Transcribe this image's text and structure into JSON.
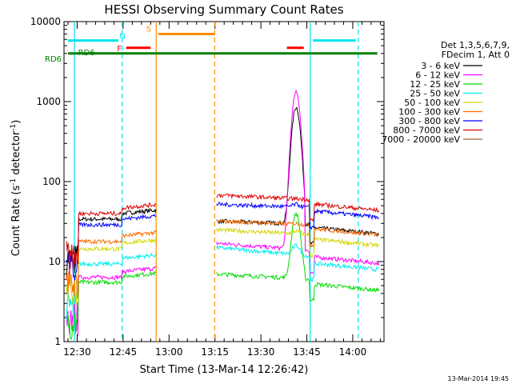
{
  "chart_data": {
    "type": "line",
    "title": "HESSI Observing Summary Count Rates",
    "xlabel": "Start Time (13-Mar-14 12:26:42)",
    "ylabel_main": "Count Rate (s",
    "ylabel_sup1": "-1",
    "ylabel_mid": " detector",
    "ylabel_sup2": "-1",
    "ylabel_end": ")",
    "y_log": true,
    "ylim": [
      1,
      10000
    ],
    "xlim_minutes": [
      -4.3,
      100.2
    ],
    "x_ticks": [
      {
        "m": 0,
        "label": "12:30"
      },
      {
        "m": 15,
        "label": "12:45"
      },
      {
        "m": 30,
        "label": "13:00"
      },
      {
        "m": 45,
        "label": "13:15"
      },
      {
        "m": 60,
        "label": "13:30"
      },
      {
        "m": 75,
        "label": "13:45"
      },
      {
        "m": 90,
        "label": "14:00"
      }
    ],
    "y_ticks": [
      {
        "v": 1,
        "label": "1"
      },
      {
        "v": 10,
        "label": "10"
      },
      {
        "v": 100,
        "label": "100"
      },
      {
        "v": 1000,
        "label": "1000"
      },
      {
        "v": 10000,
        "label": "10000"
      }
    ],
    "legend_header": [
      "Det 1,3,5,6,7,9,",
      "FDecim 1, Att 0"
    ],
    "legend_position": "right",
    "series": [
      {
        "name": "3 - 6 keV",
        "color": "#000000",
        "pre": 40,
        "post": [
          32,
          28
        ],
        "flare": 850
      },
      {
        "name": "6 - 12 keV",
        "color": "#ff00ff",
        "pre": 7.5,
        "post": [
          17,
          12
        ],
        "flare": 1300
      },
      {
        "name": "12 - 25 keV",
        "color": "#00dd00",
        "pre": 6.5,
        "post": [
          7,
          5.5
        ],
        "flare": 40
      },
      {
        "name": "25 - 50 keV",
        "color": "#00eeee",
        "pre": 11,
        "post": [
          15,
          10
        ],
        "flare": 16
      },
      {
        "name": "50 - 100 keV",
        "color": "#d4d400",
        "pre": 17,
        "post": [
          25,
          20
        ],
        "flare": 24
      },
      {
        "name": "100 - 300 keV",
        "color": "#ff6a00",
        "pre": 21,
        "post": [
          32,
          27
        ],
        "flare": 30
      },
      {
        "name": "300 - 800 keV",
        "color": "#0000ff",
        "pre": 34,
        "post": [
          52,
          45
        ],
        "flare": 52
      },
      {
        "name": "800 - 7000 keV",
        "color": "#dd0000",
        "pre": 47,
        "post": [
          68,
          55
        ],
        "flare": 60
      },
      {
        "name": "7000 - 20000 keV",
        "color": "#996633",
        "pre": null,
        "post": null,
        "flare": null
      }
    ],
    "flags": [
      {
        "label": "N",
        "color": "#00e5ee",
        "segments": [
          [
            -3,
            13.5
          ],
          [
            77,
            91
          ]
        ],
        "y": 5800
      },
      {
        "label": "S",
        "color": "#ff8c00",
        "segments": [
          [
            26.5,
            45
          ]
        ],
        "y": 7000
      },
      {
        "label": "F",
        "color": "#ff0000",
        "segments": [
          [
            16,
            24
          ],
          [
            68.5,
            74
          ]
        ],
        "y": 4700
      },
      {
        "label": "RD6",
        "color": "#008000",
        "segments": [
          [
            -3,
            0
          ],
          [
            0,
            98
          ]
        ],
        "y": 4000
      }
    ],
    "flag_label_rd6_inner": "RD6",
    "vlines": [
      {
        "m": -0.9,
        "color": "#00e5ee",
        "style": "solid"
      },
      {
        "m": 14.7,
        "color": "#00e5ee",
        "style": "dashed"
      },
      {
        "m": 25.8,
        "color": "#ff8c00",
        "style": "solid"
      },
      {
        "m": 44.9,
        "color": "#ff8c00",
        "style": "dashed"
      },
      {
        "m": 76.1,
        "color": "#00e5ee",
        "style": "solid"
      },
      {
        "m": 91.8,
        "color": "#00e5ee",
        "style": "dashed"
      }
    ],
    "grid": false
  },
  "timestamp": "13-Mar-2014 19:45"
}
